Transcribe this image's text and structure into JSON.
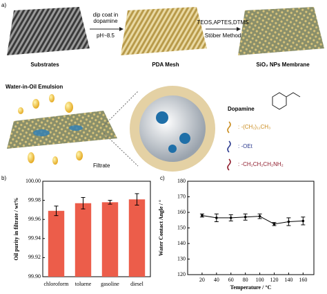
{
  "schematic": {
    "panel_label": "a)",
    "step1_top": "dip coat in",
    "step1_mid": "dopamine",
    "step1_bottom": "pH~8.5",
    "step2_top": "TEOS,APTES,DTMS",
    "step2_bottom": "Stöber Method",
    "label_substrates": "Substrates",
    "label_pda": "PDA   Mesh",
    "label_sio2": "SiO₂   NPs   Membrane",
    "emulsion": "Water-in-Oil Emulsion",
    "filtrate": "Filtrate",
    "dopamine": "Dopamine",
    "legend": [
      ": -(CH₂)₁₁CH₃",
      ":  -OEt",
      ":  -CH₂CH₂CH₂NH₂"
    ]
  },
  "chart_data": [
    {
      "type": "bar",
      "panel_label": "b)",
      "y_label": "Oil purity in filtrate / wt%",
      "categories": [
        "chloroform",
        "toluene",
        "gasoline",
        "diesel"
      ],
      "values": [
        99.969,
        99.977,
        99.978,
        99.981
      ],
      "errors": [
        0.005,
        0.006,
        0.002,
        0.006
      ],
      "color": "#ec5d4a",
      "ylim": [
        99.9,
        100.0
      ],
      "yticks": [
        {
          "value": 99.9,
          "label": "99.90"
        },
        {
          "value": 99.92,
          "label": "99.92"
        },
        {
          "value": 99.94,
          "label": "99.94"
        },
        {
          "value": 99.96,
          "label": "99.96"
        },
        {
          "value": 99.98,
          "label": "99.98"
        },
        {
          "value": 100.0,
          "label": "100.00"
        }
      ]
    },
    {
      "type": "line",
      "panel_label": "c)",
      "x_label": "Temperature / °C",
      "y_label": "Water Contact Angle / °",
      "x": [
        20,
        40,
        60,
        80,
        100,
        120,
        140,
        160
      ],
      "values": [
        158,
        156.5,
        156.5,
        157,
        157.5,
        152.5,
        154,
        154.5
      ],
      "errors": [
        1,
        2.5,
        2,
        2,
        1.5,
        1,
        2.5,
        2.5
      ],
      "color": "#000000",
      "xlim": [
        0,
        175
      ],
      "xticks": [
        20,
        40,
        60,
        80,
        100,
        120,
        140,
        160
      ],
      "ylim": [
        120,
        180
      ],
      "yticks": [
        120,
        130,
        140,
        150,
        160,
        170,
        180
      ]
    }
  ]
}
